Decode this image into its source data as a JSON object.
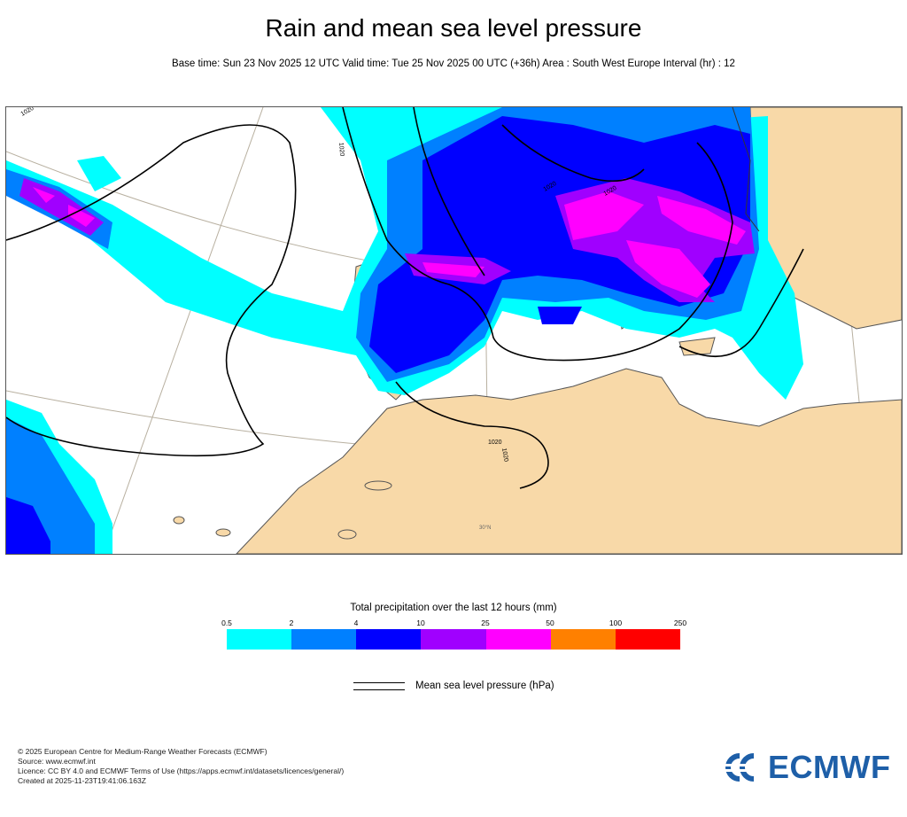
{
  "header": {
    "title": "Rain and mean sea level pressure",
    "subtitle": "Base time: Sun 23 Nov 2025 12 UTC Valid time: Tue 25 Nov 2025 00 UTC (+36h) Area : South West Europe Interval (hr) : 12"
  },
  "map": {
    "region": "South West Europe",
    "colors": {
      "sea": "#ffffff",
      "land": "#f8d9a8",
      "coast": "#555555",
      "isobar": "#000000",
      "graticule": "#b8b0a0"
    },
    "isobar_labels": [
      "1020",
      "1020",
      "1020",
      "1020",
      "1020",
      "1020"
    ],
    "graticule_label": "30°N"
  },
  "legend": {
    "title": "Total precipitation over the last 12 hours (mm)",
    "ticks": [
      "0.5",
      "2",
      "4",
      "10",
      "25",
      "50",
      "100",
      "250"
    ],
    "colors": [
      "#00ffff",
      "#0080ff",
      "#0000ff",
      "#a000ff",
      "#ff00ff",
      "#ff8000",
      "#ff0000"
    ],
    "mslp_label": "Mean sea level pressure (hPa)"
  },
  "credits": {
    "line1": "© 2025 European Centre for Medium-Range Weather Forecasts (ECMWF)",
    "line2": "Source: www.ecmwf.int",
    "line3": "Licence: CC BY 4.0 and ECMWF Terms of Use (https://apps.ecmwf.int/datasets/licences/general/)",
    "line4": "Created at 2025-11-23T19:41:06.163Z"
  },
  "logo": {
    "text": "ECMWF",
    "color": "#1e5fa8"
  }
}
